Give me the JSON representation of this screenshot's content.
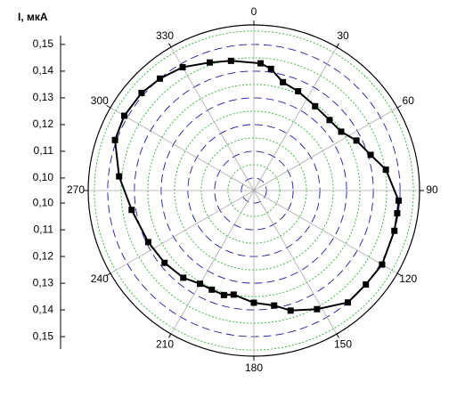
{
  "chart_data": {
    "type": "polar",
    "y_label": "I, мкА",
    "ylim": [
      0.0953,
      0.1573
    ],
    "yticks": [
      {
        "value": 0.1,
        "label": "0,10"
      },
      {
        "value": 0.11,
        "label": "0,11"
      },
      {
        "value": 0.12,
        "label": "0,12"
      },
      {
        "value": 0.13,
        "label": "0,13"
      },
      {
        "value": 0.14,
        "label": "0,14"
      },
      {
        "value": 0.15,
        "label": "0,15"
      }
    ],
    "xticks": [
      0,
      30,
      60,
      90,
      120,
      150,
      180,
      210,
      240,
      270,
      300,
      330
    ],
    "grid": true,
    "series": [
      {
        "color": "#000000",
        "x": [
          3,
          8,
          15,
          24,
          36,
          47,
          56,
          64,
          73,
          81,
          94,
          99,
          106,
          120,
          130,
          140,
          152,
          163,
          170,
          180,
          191,
          196,
          203,
          210,
          219,
          231,
          244,
          261,
          276,
          290,
          300,
          311,
          320,
          330,
          341,
          350
        ],
        "values": [
          0.143,
          0.1413,
          0.1373,
          0.136,
          0.1343,
          0.134,
          0.1347,
          0.138,
          0.141,
          0.1453,
          0.1496,
          0.1496,
          0.15,
          0.1507,
          0.15,
          0.15,
          0.1456,
          0.1423,
          0.139,
          0.1373,
          0.135,
          0.136,
          0.1356,
          0.1356,
          0.1373,
          0.1383,
          0.1393,
          0.1416,
          0.146,
          0.1506,
          0.1513,
          0.151,
          0.15,
          0.1486,
          0.146,
          0.1446
        ]
      }
    ]
  }
}
